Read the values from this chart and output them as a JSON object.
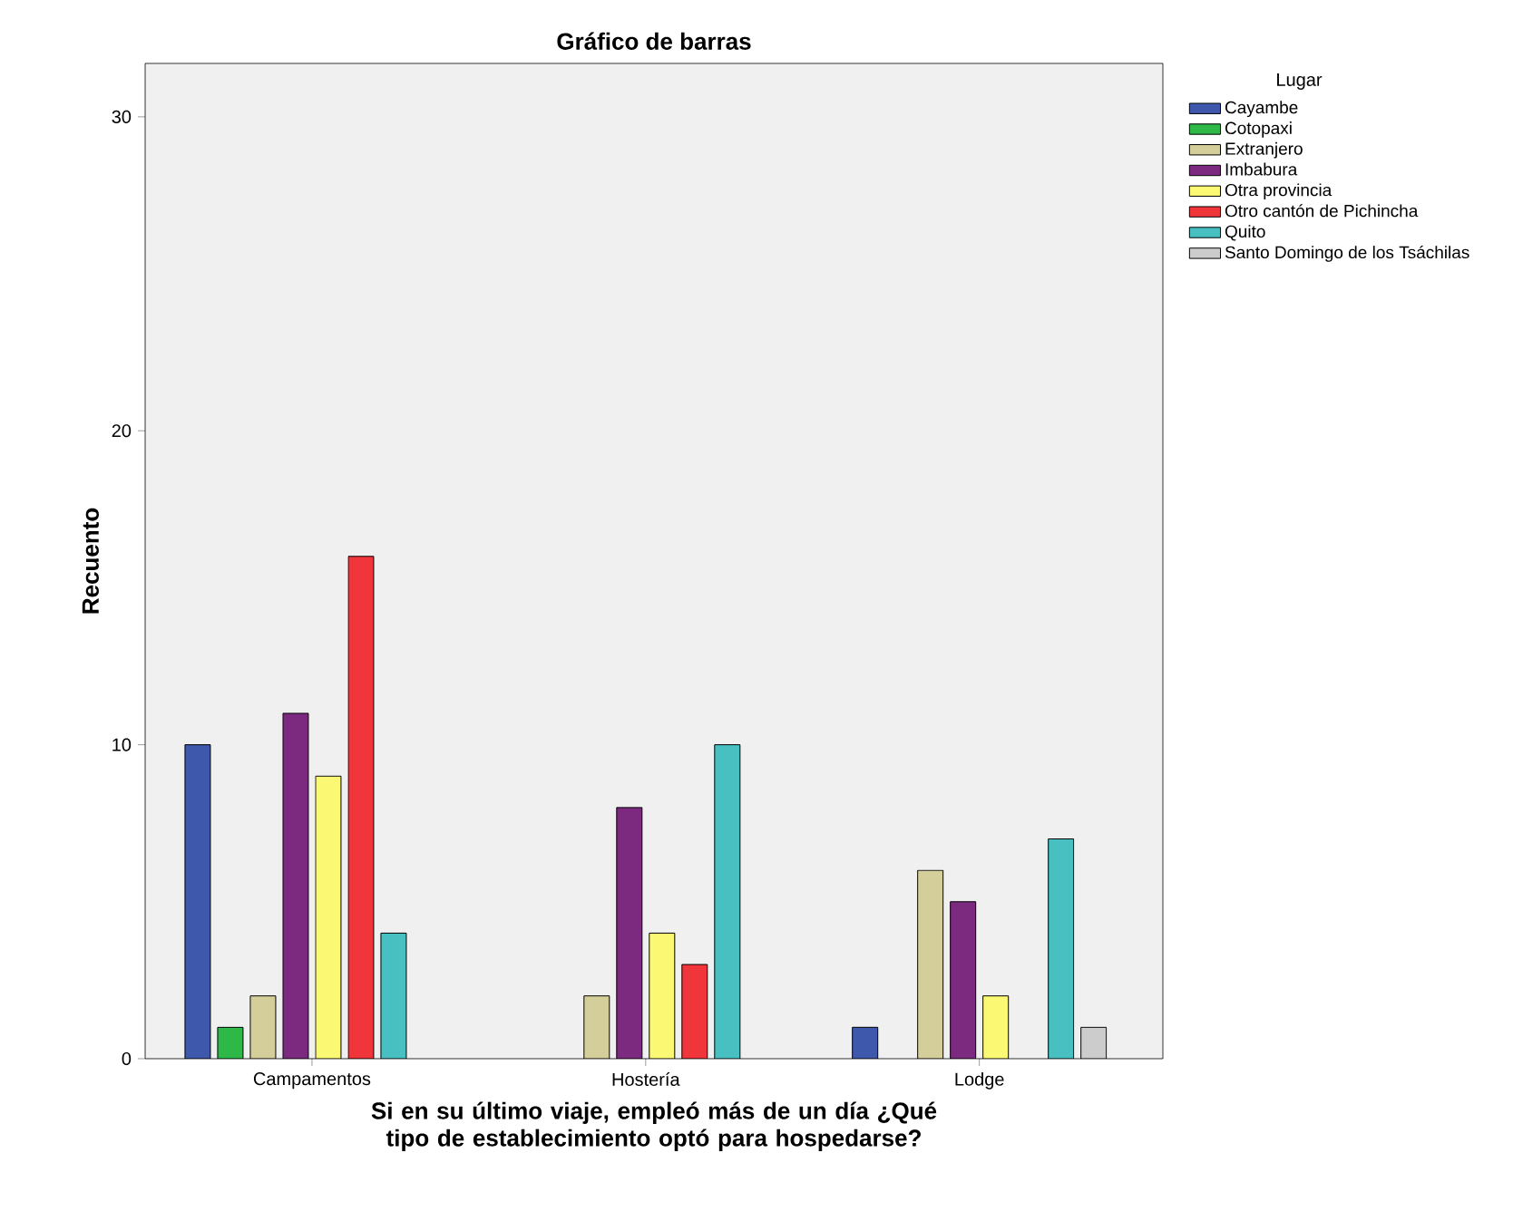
{
  "chart_data": {
    "type": "bar",
    "title": "Gráfico de barras",
    "xlabel": "Si en su último viaje, empleó más de un día ¿Qué tipo de establecimiento optó para hospedarse?",
    "ylabel": "Recuento",
    "legend_title": "Lugar",
    "legend": "right",
    "categories": [
      "Campamentos",
      "Hostería",
      "Lodge"
    ],
    "series": [
      {
        "name": "Cayambe",
        "color": "#3e58ac",
        "values": [
          10,
          null,
          1
        ]
      },
      {
        "name": "Cotopaxi",
        "color": "#2eb848",
        "values": [
          1,
          null,
          null
        ]
      },
      {
        "name": "Extranjero",
        "color": "#d4ce9a",
        "values": [
          2,
          2,
          6
        ]
      },
      {
        "name": "Imbabura",
        "color": "#7b2a7f",
        "values": [
          11,
          8,
          5
        ]
      },
      {
        "name": "Otra provincia",
        "color": "#fbf873",
        "values": [
          9,
          4,
          2
        ]
      },
      {
        "name": "Otro cantón de Pichincha",
        "color": "#f0353b",
        "values": [
          16,
          3,
          null
        ]
      },
      {
        "name": "Quito",
        "color": "#48c0c2",
        "values": [
          4,
          10,
          7
        ]
      },
      {
        "name": "Santo Domingo de los Tsáchilas",
        "color": "#cccccc",
        "values": [
          null,
          null,
          1
        ]
      }
    ],
    "ylim": [
      0,
      31.7
    ],
    "yticks": [
      0,
      10,
      20,
      30
    ]
  }
}
